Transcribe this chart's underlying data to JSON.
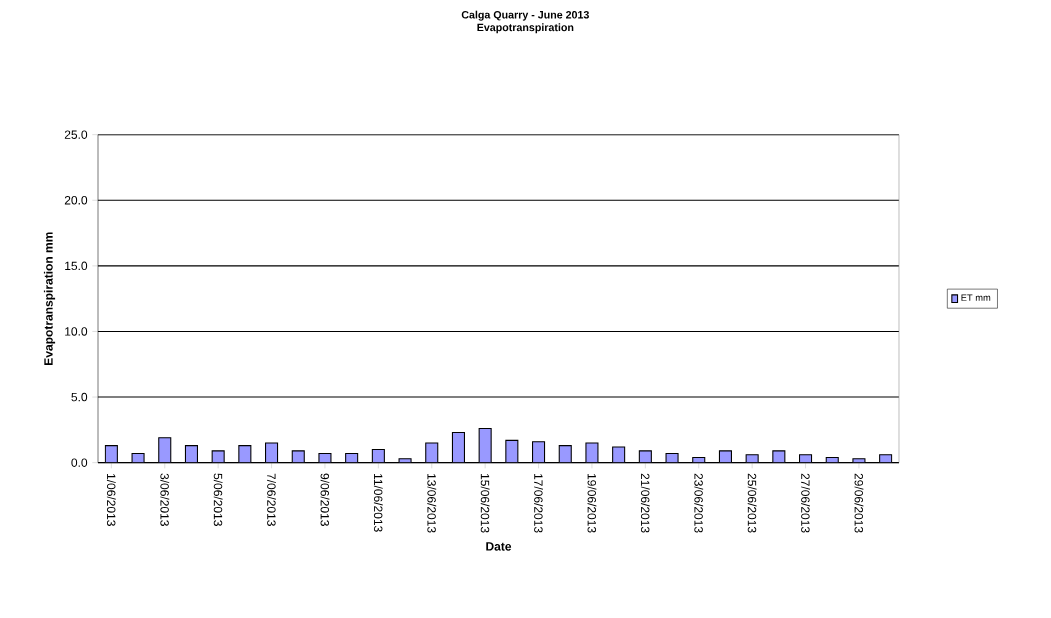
{
  "chart_data": {
    "type": "bar",
    "title": "Calga Quarry - June 2013",
    "subtitle": "Evapotranspiration",
    "xlabel": "Date",
    "ylabel": "Evapotranspiration mm",
    "categories": [
      "1/06/2013",
      null,
      "3/06/2013",
      null,
      "5/06/2013",
      null,
      "7/06/2013",
      null,
      "9/06/2013",
      null,
      "11/06/2013",
      null,
      "13/06/2013",
      null,
      "15/06/2013",
      null,
      "17/06/2013",
      null,
      "19/06/2013",
      null,
      "21/06/2013",
      null,
      "23/06/2013",
      null,
      "25/06/2013",
      null,
      "27/06/2013",
      null,
      "29/06/2013",
      null
    ],
    "series": [
      {
        "name": "ET mm",
        "color": "#9999ff",
        "values": [
          1.3,
          0.7,
          1.9,
          1.3,
          0.9,
          1.3,
          1.5,
          0.9,
          0.7,
          0.7,
          1.0,
          0.3,
          1.5,
          2.3,
          2.6,
          1.7,
          1.6,
          1.3,
          1.5,
          1.2,
          0.9,
          0.7,
          0.4,
          0.9,
          0.6,
          0.9,
          0.6,
          0.4,
          0.3,
          0.6
        ]
      }
    ],
    "ylim": [
      0,
      25
    ],
    "yticks": [
      {
        "value": 0,
        "label": "0.0"
      },
      {
        "value": 5,
        "label": "5.0"
      },
      {
        "value": 10,
        "label": "10.0"
      },
      {
        "value": 15,
        "label": "15.0"
      },
      {
        "value": 20,
        "label": "20.0"
      },
      {
        "value": 25,
        "label": "25.0"
      }
    ],
    "grid": "y",
    "legend": "right"
  }
}
